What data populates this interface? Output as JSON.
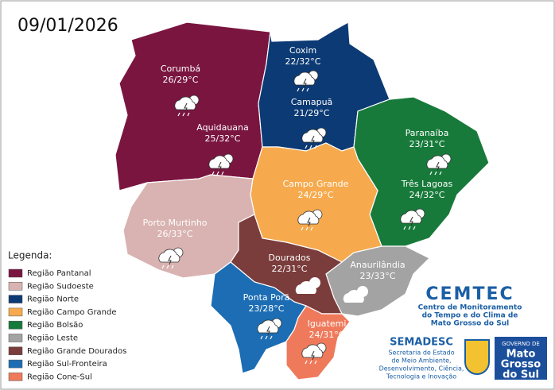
{
  "date": "09/01/2026",
  "legend": {
    "title": "Legenda:"
  },
  "regions": [
    {
      "name": "Região Pantanal",
      "color": "#7a1540",
      "cities": [
        {
          "name": "Corumbá",
          "temp": "26/29°C"
        },
        {
          "name": "Aquidauana",
          "temp": "25/32°C"
        }
      ]
    },
    {
      "name": "Região Sudoeste",
      "color": "#d9b3b1",
      "cities": [
        {
          "name": "Porto Murtinho",
          "temp": "26/33°C"
        }
      ]
    },
    {
      "name": "Região Norte",
      "color": "#0c3a74",
      "cities": [
        {
          "name": "Coxim",
          "temp": "22/32°C"
        },
        {
          "name": "Camapuã",
          "temp": "21/29°C"
        }
      ]
    },
    {
      "name": "Região Campo Grande",
      "color": "#f6aa4d",
      "cities": [
        {
          "name": "Campo Grande",
          "temp": "24/29°C"
        }
      ]
    },
    {
      "name": "Região Bolsão",
      "color": "#177a3a",
      "cities": [
        {
          "name": "Paranaíba",
          "temp": "23/31°C"
        },
        {
          "name": "Três Lagoas",
          "temp": "24/32°C"
        }
      ]
    },
    {
      "name": "Região Leste",
      "color": "#a3a3a3",
      "cities": [
        {
          "name": "Anaurilândia",
          "temp": "23/33°C"
        }
      ]
    },
    {
      "name": "Região Grande Dourados",
      "color": "#7b3c3c",
      "cities": [
        {
          "name": "Dourados",
          "temp": "22/31°C"
        }
      ]
    },
    {
      "name": "Região Sul-Fronteira",
      "color": "#1c6db3",
      "cities": [
        {
          "name": "Ponta Porã",
          "temp": "23/28°C"
        }
      ]
    },
    {
      "name": "Região Cone-Sul",
      "color": "#ef7a5b",
      "cities": [
        {
          "name": "Iguatemi",
          "temp": "24/31°C"
        }
      ]
    }
  ],
  "footer": {
    "cemtec": "CEMTEC",
    "cemtec_text": [
      "Centro de Monitoramento",
      "do Tempo e do Clima de",
      "Mato Grosso do Sul"
    ],
    "semadesc": "SEMADESC",
    "semadesc_text": [
      "Secretaria de Estado",
      "de Meio Ambiente,",
      "Desenvolvimento, Ciência,",
      "Tecnologia e Inovação"
    ],
    "gov": "GOVERNO DE",
    "state": [
      "Mato",
      "Grosso",
      "do Sul"
    ]
  }
}
